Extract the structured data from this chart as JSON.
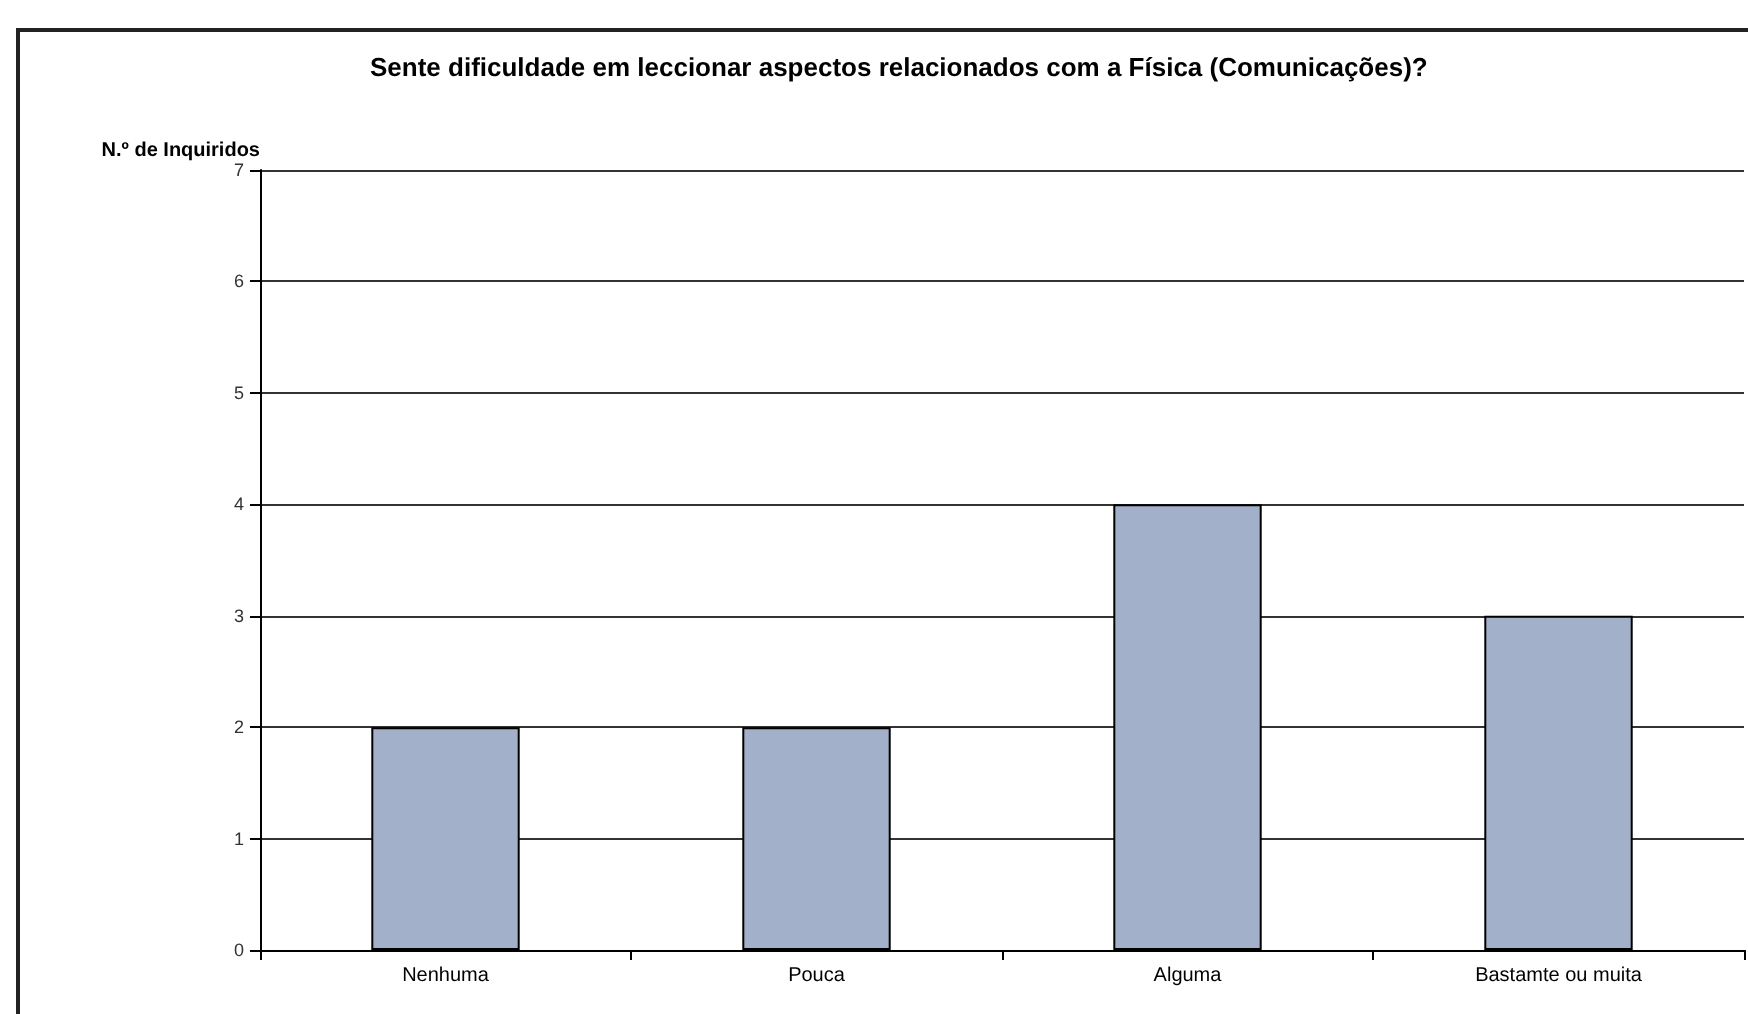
{
  "chart_data": {
    "type": "bar",
    "title": "Sente dificuldade em leccionar aspectos relacionados com a Física (Comunicações)?",
    "ylabel": "N.º de Inquiridos",
    "categories": [
      "Nenhuma",
      "Pouca",
      "Alguma",
      "Bastamte ou muita"
    ],
    "values": [
      2,
      2,
      4,
      3
    ],
    "color": "#a3b0c9",
    "ylim": [
      0,
      7
    ],
    "yticks": [
      0,
      1,
      2,
      3,
      4,
      5,
      6,
      7
    ],
    "grid": "y"
  }
}
